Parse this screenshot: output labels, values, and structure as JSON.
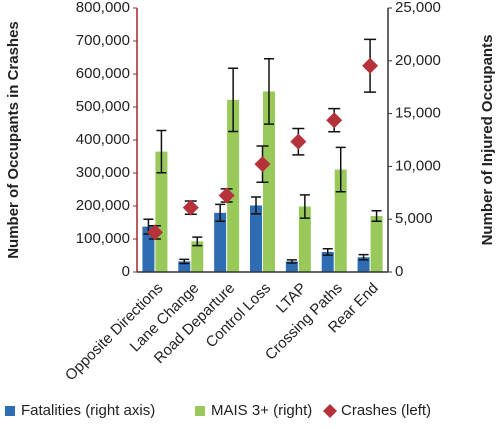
{
  "chart_data": {
    "type": "bar",
    "categories": [
      "Opposite Directions",
      "Lane Change",
      "Road Departure",
      "Control Loss",
      "LTAP",
      "Crossing Paths",
      "Rear End"
    ],
    "y_label": "Number of Occupants in Crashes",
    "y2_label": "Number of Injured Occupants",
    "ylim": [
      0,
      800000
    ],
    "yticks": [
      0,
      {
        "value": 100000,
        "label": "100,000"
      },
      {
        "value": 200000,
        "label": "200,000"
      },
      {
        "value": 300000,
        "label": "300,000"
      },
      {
        "value": 400000,
        "label": "400,000"
      },
      {
        "value": 500000,
        "label": "500,000"
      },
      {
        "value": 600000,
        "label": "600,000"
      },
      {
        "value": 700000,
        "label": "700,000"
      },
      {
        "value": 800000,
        "label": "800,000"
      }
    ],
    "y2lim": [
      0,
      25000
    ],
    "y2ticks": [
      0,
      {
        "value": 5000,
        "label": "5,000"
      },
      {
        "value": 10000,
        "label": "10,000"
      },
      {
        "value": 15000,
        "label": "15,000"
      },
      {
        "value": 20000,
        "label": "20,000"
      },
      {
        "value": 25000,
        "label": "25,000"
      }
    ],
    "series": [
      {
        "name": "Fatalities (right axis)",
        "type": "bar",
        "axis": "y2",
        "color": "#2e6db4",
        "values": [
          4300,
          1000,
          5600,
          6300,
          1000,
          1900,
          1400
        ],
        "errors": [
          700,
          200,
          800,
          800,
          150,
          300,
          250
        ]
      },
      {
        "name": "MAIS 3+ (right)",
        "type": "bar",
        "axis": "y2",
        "color": "#99c95a",
        "values": [
          11400,
          2900,
          16300,
          17100,
          6200,
          9700,
          5300
        ],
        "errors": [
          2000,
          400,
          3000,
          3100,
          1100,
          2100,
          500
        ]
      },
      {
        "name": "Crashes (left)",
        "type": "scatter",
        "axis": "y",
        "color": "#b5323a",
        "values": [
          120000,
          195000,
          232000,
          327000,
          395000,
          460000,
          625000
        ],
        "errors": [
          20000,
          20000,
          20000,
          55000,
          40000,
          35000,
          80000
        ]
      }
    ]
  }
}
